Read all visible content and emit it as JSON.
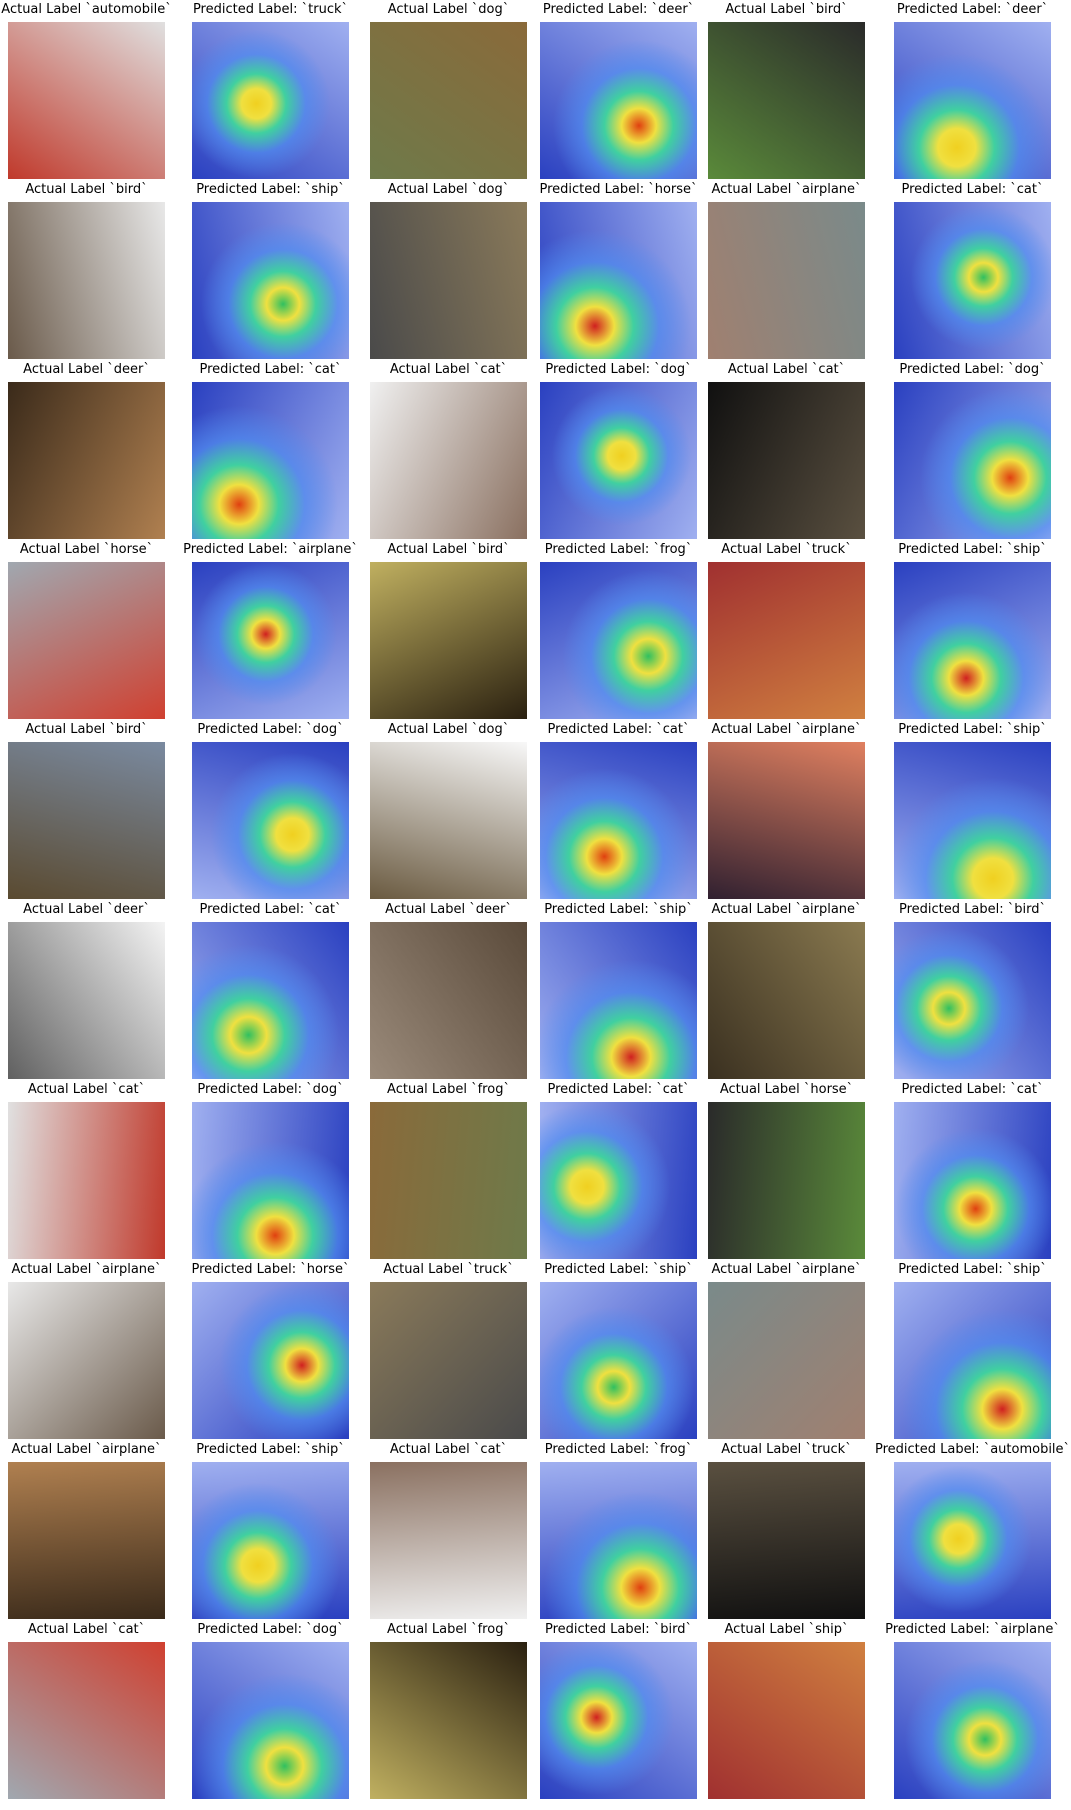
{
  "grid": {
    "rows": [
      [
        "Actual Label `automobile`",
        "Predicted Label: `truck`",
        "Actual Label `dog`",
        "Predicted Label: `deer`",
        "Actual Label `bird`",
        "Predicted Label: `deer`"
      ],
      [
        "Actual Label `bird`",
        "Predicted Label: `ship`",
        "Actual Label `dog`",
        "Predicted Label: `horse`",
        "Actual Label `airplane`",
        "Predicted Label: `cat`"
      ],
      [
        "Actual Label `deer`",
        "Predicted Label: `cat`",
        "Actual Label `cat`",
        "Predicted Label: `dog`",
        "Actual Label `cat`",
        "Predicted Label: `dog`"
      ],
      [
        "Actual Label `horse`",
        "Predicted Label: `airplane`",
        "Actual Label `bird`",
        "Predicted Label: `frog`",
        "Actual Label `truck`",
        "Predicted Label: `ship`"
      ],
      [
        "Actual Label `bird`",
        "Predicted Label: `dog`",
        "Actual Label `dog`",
        "Predicted Label: `cat`",
        "Actual Label `airplane`",
        "Predicted Label: `ship`"
      ],
      [
        "Actual Label `deer`",
        "Predicted Label: `cat`",
        "Actual Label `deer`",
        "Predicted Label: `ship`",
        "Actual Label `airplane`",
        "Predicted Label: `bird`"
      ],
      [
        "Actual Label `cat`",
        "Predicted Label: `dog`",
        "Actual Label `frog`",
        "Predicted Label: `cat`",
        "Actual Label `horse`",
        "Predicted Label: `cat`"
      ],
      [
        "Actual Label `airplane`",
        "Predicted Label: `horse`",
        "Actual Label `truck`",
        "Predicted Label: `ship`",
        "Actual Label `airplane`",
        "Predicted Label: `ship`"
      ],
      [
        "Actual Label `airplane`",
        "Predicted Label: `ship`",
        "Actual Label `cat`",
        "Predicted Label: `frog`",
        "Actual Label `truck`",
        "Predicted Label: `automobile`"
      ],
      [
        "Actual Label `cat`",
        "Predicted Label: `dog`",
        "Actual Label `frog`",
        "Predicted Label: `bird`",
        "Actual Label `ship`",
        "Predicted Label: `airplane`"
      ]
    ]
  }
}
